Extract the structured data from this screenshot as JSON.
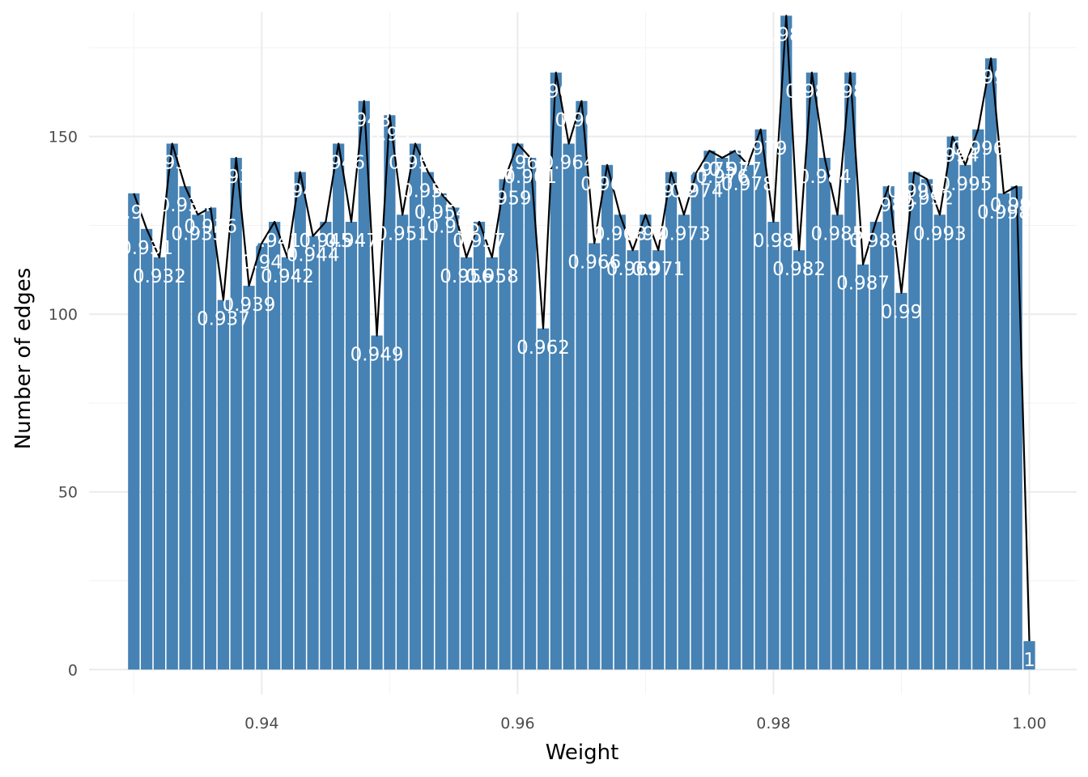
{
  "chart_data": {
    "type": "bar",
    "xlabel": "Weight",
    "ylabel": "Number of edges",
    "xlim": [
      0.9265,
      1.0037
    ],
    "ylim": [
      -7,
      185
    ],
    "x_ticks": [
      0.94,
      0.96,
      0.98,
      1.0
    ],
    "x_tick_labels": [
      "0.94",
      "0.96",
      "0.98",
      "1.00"
    ],
    "y_ticks": [
      0,
      50,
      100,
      150
    ],
    "y_tick_labels": [
      "0",
      "50",
      "100",
      "150"
    ],
    "grid": true,
    "bar_color": "#4682b4",
    "line_color": "#000000",
    "label_color": "#ffffff",
    "x": [
      0.93,
      0.931,
      0.932,
      0.933,
      0.934,
      0.935,
      0.936,
      0.937,
      0.938,
      0.939,
      0.94,
      0.941,
      0.942,
      0.943,
      0.944,
      0.945,
      0.946,
      0.947,
      0.948,
      0.949,
      0.95,
      0.951,
      0.952,
      0.953,
      0.954,
      0.955,
      0.956,
      0.957,
      0.958,
      0.959,
      0.96,
      0.961,
      0.962,
      0.963,
      0.964,
      0.965,
      0.966,
      0.967,
      0.968,
      0.969,
      0.97,
      0.971,
      0.972,
      0.973,
      0.974,
      0.975,
      0.976,
      0.977,
      0.978,
      0.979,
      0.98,
      0.981,
      0.982,
      0.983,
      0.984,
      0.985,
      0.986,
      0.987,
      0.988,
      0.989,
      0.99,
      0.991,
      0.992,
      0.993,
      0.994,
      0.995,
      0.996,
      0.997,
      0.998,
      0.999,
      1.0
    ],
    "values": [
      134,
      124,
      116,
      148,
      136,
      128,
      130,
      104,
      144,
      108,
      120,
      126,
      116,
      140,
      122,
      126,
      148,
      126,
      160,
      94,
      156,
      128,
      148,
      140,
      134,
      130,
      116,
      126,
      116,
      138,
      148,
      144,
      96,
      168,
      148,
      160,
      120,
      142,
      128,
      118,
      128,
      118,
      140,
      128,
      140,
      146,
      144,
      146,
      142,
      152,
      126,
      184,
      118,
      168,
      144,
      128,
      168,
      114,
      126,
      136,
      106,
      140,
      138,
      128,
      150,
      142,
      152,
      172,
      134,
      136,
      8
    ],
    "bar_labels": [
      "0.93",
      "0.931",
      "0.932",
      "0.933",
      "0.934",
      "0.935",
      "0.936",
      "0.937",
      "0.938",
      "0.939",
      "0.94",
      "0.941",
      "0.942",
      "0.943",
      "0.944",
      "0.945",
      "0.946",
      "0.947",
      "0.948",
      "0.949",
      "0.95",
      "0.951",
      "0.952",
      "0.953",
      "0.954",
      "0.955",
      "0.956",
      "0.957",
      "0.958",
      "0.959",
      "0.96",
      "0.961",
      "0.962",
      "0.963",
      "0.964",
      "0.965",
      "0.966",
      "0.967",
      "0.968",
      "0.969",
      "0.97",
      "0.971",
      "0.972",
      "0.973",
      "0.974",
      "0.975",
      "0.976",
      "0.977",
      "0.978",
      "0.979",
      "0.98",
      "0.981",
      "0.982",
      "0.983",
      "0.984",
      "0.985",
      "0.986",
      "0.987",
      "0.988",
      "0.989",
      "0.99",
      "0.991",
      "0.992",
      "0.993",
      "0.994",
      "0.995",
      "0.996",
      "0.997",
      "0.998",
      "0.999",
      "1"
    ]
  }
}
